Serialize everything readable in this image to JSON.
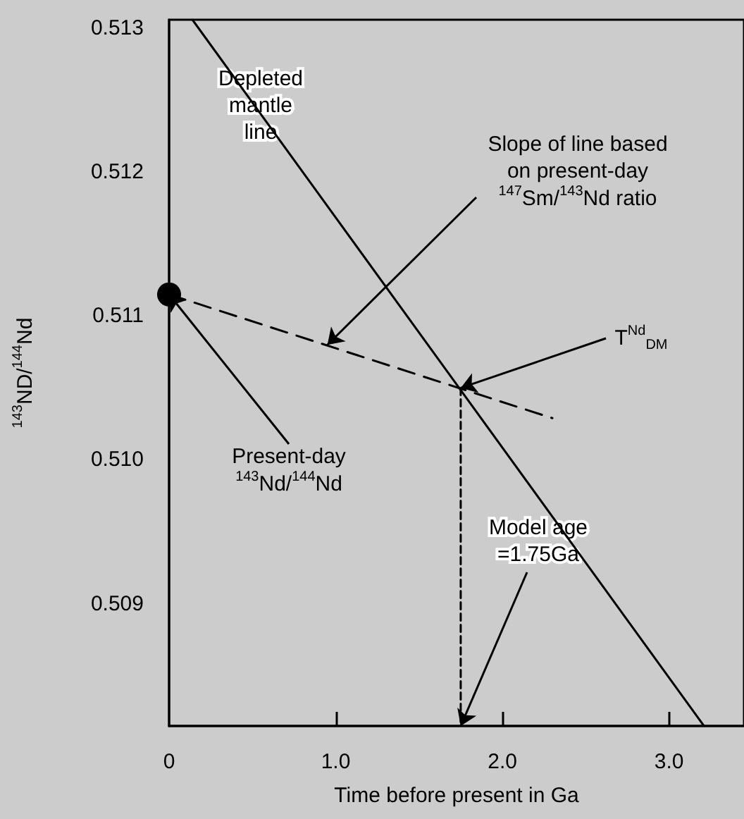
{
  "chart_data": {
    "type": "line",
    "xlabel": "Time before present in Ga",
    "ylabel": "$^{143}$ND/$^{144}$Nd",
    "xlim": [
      0,
      3.45
    ],
    "ylim": [
      0.50815,
      0.51306
    ],
    "xticks": [
      0,
      {
        "value": 1,
        "label": "1.0"
      },
      {
        "value": 2,
        "label": "2.0"
      },
      {
        "value": 3,
        "label": "3.0"
      }
    ],
    "yticks": [
      0.509,
      {
        "value": 0.51,
        "label": "0.510"
      },
      0.511,
      0.512,
      0.513
    ],
    "grid": false,
    "series": [
      {
        "type": "line",
        "x": [
          0.14,
          3.21
        ],
        "values": [
          0.51306,
          0.50815
        ],
        "color": "#000000",
        "line_style": "solid",
        "marker": "none"
      },
      {
        "type": "line",
        "x": [
          0,
          2.3
        ],
        "values": [
          0.51115,
          0.51029
        ],
        "color": "#000000",
        "line_style": "dashed",
        "marker": "none"
      },
      {
        "type": "line",
        "x": [
          1.75,
          1.75
        ],
        "values": [
          0.5105,
          0.50815
        ],
        "color": "#000000",
        "line_style": "dotted",
        "marker": "none"
      },
      {
        "type": "scatter",
        "x": [
          0
        ],
        "values": [
          0.51115
        ],
        "color": "#000000",
        "marker": "circle"
      }
    ],
    "annotations": [
      "Depleted\nmantle\nline",
      {
        "text": "Slope of line based\non present-day\n$^{147}$Sm/$^{143}$Nd ratio",
        "x": 0.95,
        "y": 0.5108
      },
      {
        "text": "T$^{Nd}$$_{DM}$",
        "x": 1.75,
        "y": 0.5105
      },
      {
        "text": "Present-day\n$^{143}$Nd/$^{144}$Nd",
        "x": 0,
        "y": 0.51115
      },
      {
        "text": "Model age\n=1.75Ga",
        "x": 1.75,
        "y": 0.50815
      }
    ]
  }
}
